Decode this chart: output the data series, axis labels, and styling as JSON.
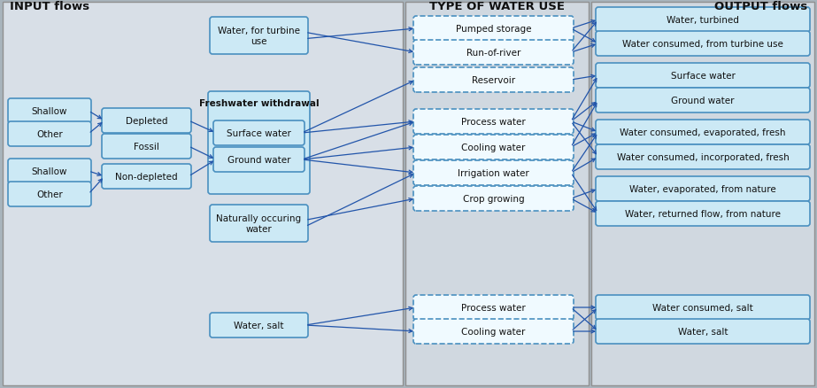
{
  "fig_width": 9.23,
  "fig_height": 4.39,
  "section_titles": [
    "INPUT flows",
    "TYPE OF WATER USE",
    "OUTPUT flows"
  ],
  "panel_colors": [
    "#d0d8e0",
    "#d0d8e0",
    "#d0d8e0"
  ],
  "box_fill": "#cce9f5",
  "box_edge": "#4a90c0",
  "box_dashed_fill": "#f0faff",
  "box_dashed_edge": "#4a90c0",
  "group_fill": "#cce9f5",
  "group_edge": "#4a90c0",
  "arrow_color": "#2255aa",
  "bg_color": "#a8b4bc",
  "input_col1": [
    "Shallow",
    "Other",
    "Shallow",
    "Other"
  ],
  "input_col2": [
    "Depleted",
    "Fossil",
    "Non-depleted"
  ],
  "input_col3_turbine": "Water, for turbine\nuse",
  "input_freshwater_label": "Freshwater withdrawal",
  "input_col3_fresh": [
    "Surface water",
    "Ground water"
  ],
  "input_col3_natural": "Naturally occuring\nwater",
  "input_col3_salt": "Water, salt",
  "middle_dashed_top": [
    "Pumped storage",
    "Run-of-river",
    "Reservoir"
  ],
  "middle_dashed_mid": [
    "Process water",
    "Cooling water",
    "Irrigation water",
    "Crop growing"
  ],
  "middle_dashed_bot": [
    "Process water",
    "Cooling water"
  ],
  "output_boxes": [
    "Water, turbined",
    "Water consumed, from turbine use",
    "Surface water",
    "Ground water",
    "Water consumed, evaporated, fresh",
    "Water consumed, incorporated, fresh",
    "Water, evaporated, from nature",
    "Water, returned flow, from nature",
    "Water consumed, salt",
    "Water, salt"
  ]
}
